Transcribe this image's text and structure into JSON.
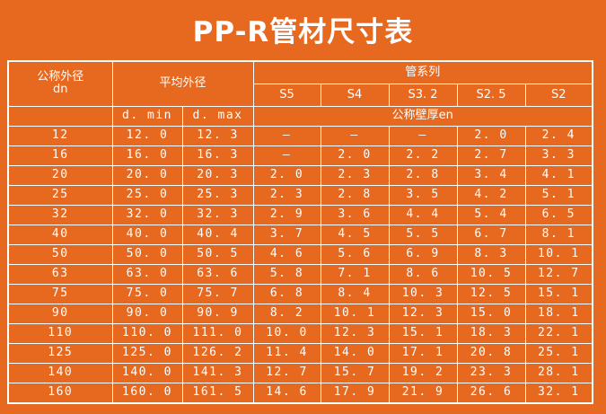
{
  "title": "PP-R管材尺寸表",
  "header": {
    "outer_diameter": "公称外径",
    "outer_diameter_unit": "dn",
    "avg_diameter": "平均外径",
    "d_min": "d. min",
    "d_max": "d. max",
    "pipe_series": "管系列",
    "series": [
      "S5",
      "S4",
      "S3. 2",
      "S2. 5",
      "S2"
    ],
    "wall_thickness": "公称壁厚en"
  },
  "rows": [
    {
      "dn": "12",
      "dmin": "12. 0",
      "dmax": "12. 3",
      "s5": "—",
      "s4": "—",
      "s32": "—",
      "s25": "2. 0",
      "s2": "2. 4"
    },
    {
      "dn": "16",
      "dmin": "16. 0",
      "dmax": "16. 3",
      "s5": "—",
      "s4": "2. 0",
      "s32": "2. 2",
      "s25": "2. 7",
      "s2": "3. 3"
    },
    {
      "dn": "20",
      "dmin": "20. 0",
      "dmax": "20. 3",
      "s5": "2. 0",
      "s4": "2. 3",
      "s32": "2. 8",
      "s25": "3. 4",
      "s2": "4. 1"
    },
    {
      "dn": "25",
      "dmin": "25. 0",
      "dmax": "25. 3",
      "s5": "2. 3",
      "s4": "2. 8",
      "s32": "3. 5",
      "s25": "4. 2",
      "s2": "5. 1"
    },
    {
      "dn": "32",
      "dmin": "32. 0",
      "dmax": "32. 3",
      "s5": "2. 9",
      "s4": "3. 6",
      "s32": "4. 4",
      "s25": "5. 4",
      "s2": "6. 5"
    },
    {
      "dn": "40",
      "dmin": "40. 0",
      "dmax": "40. 4",
      "s5": "3. 7",
      "s4": "4. 5",
      "s32": "5. 5",
      "s25": "6. 7",
      "s2": "8. 1"
    },
    {
      "dn": "50",
      "dmin": "50. 0",
      "dmax": "50. 5",
      "s5": "4. 6",
      "s4": "5. 6",
      "s32": "6. 9",
      "s25": "8. 3",
      "s2": "10. 1"
    },
    {
      "dn": "63",
      "dmin": "63. 0",
      "dmax": "63. 6",
      "s5": "5. 8",
      "s4": "7. 1",
      "s32": "8. 6",
      "s25": "10. 5",
      "s2": "12. 7"
    },
    {
      "dn": "75",
      "dmin": "75. 0",
      "dmax": "75. 7",
      "s5": "6. 8",
      "s4": "8. 4",
      "s32": "10. 3",
      "s25": "12. 5",
      "s2": "15. 1"
    },
    {
      "dn": "90",
      "dmin": "90. 0",
      "dmax": "90. 9",
      "s5": "8. 2",
      "s4": "10. 1",
      "s32": "12. 3",
      "s25": "15. 0",
      "s2": "18. 1"
    },
    {
      "dn": "110",
      "dmin": "110. 0",
      "dmax": "111. 0",
      "s5": "10. 0",
      "s4": "12. 3",
      "s32": "15. 1",
      "s25": "18. 3",
      "s2": "22. 1"
    },
    {
      "dn": "125",
      "dmin": "125. 0",
      "dmax": "126. 2",
      "s5": "11. 4",
      "s4": "14. 0",
      "s32": "17. 1",
      "s25": "20. 8",
      "s2": "25. 1"
    },
    {
      "dn": "140",
      "dmin": "140. 0",
      "dmax": "141. 3",
      "s5": "12. 7",
      "s4": "15. 7",
      "s32": "19. 2",
      "s25": "23. 3",
      "s2": "28. 1"
    },
    {
      "dn": "160",
      "dmin": "160. 0",
      "dmax": "161. 5",
      "s5": "14. 6",
      "s4": "17. 9",
      "s32": "21. 9",
      "s25": "26. 6",
      "s2": "32. 1"
    }
  ],
  "colors": {
    "background": "#e7691f",
    "lines": "#ffffff",
    "text": "#ffffff"
  }
}
